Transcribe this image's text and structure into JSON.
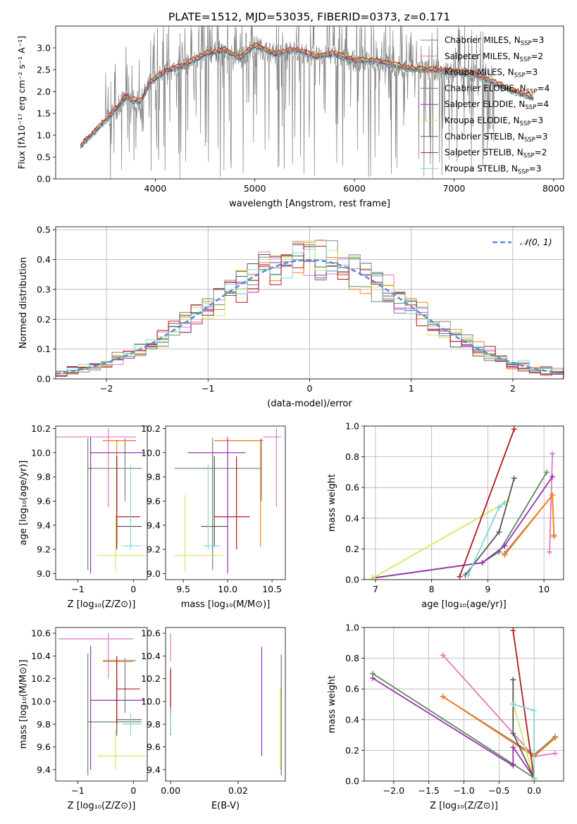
{
  "title": "PLATE=1512, MJD=53035, FIBERID=0373, z=0.171",
  "colors": [
    "#808080",
    "#e377c2",
    "#ff7f0e",
    "#5a8a5a",
    "#9b30b0",
    "#d4ea5a",
    "#555555",
    "#b01a1a",
    "#7fd8d8"
  ],
  "chart_data": [
    {
      "id": "spectrum",
      "type": "line",
      "xlabel": "wavelength [Angstrom, rest frame]",
      "ylabel": "Flux [fλ10⁻¹⁷ erg cm⁻² s⁻¹ A⁻¹]",
      "xlim": [
        3000,
        8100
      ],
      "ylim": [
        0,
        3.5
      ],
      "xticks": [
        4000,
        5000,
        6000,
        7000,
        8000
      ],
      "yticks": [
        0.0,
        0.5,
        1.0,
        1.5,
        2.0,
        2.5,
        3.0
      ],
      "legend_position": "upper-right",
      "continuum": {
        "x": [
          3250,
          3400,
          3550,
          3700,
          3850,
          3950,
          4100,
          4300,
          4500,
          4700,
          4850,
          5000,
          5200,
          5400,
          5600,
          5800,
          6000,
          6200,
          6400,
          6600,
          6800,
          7000,
          7200,
          7400,
          7600,
          7800
        ],
        "y": [
          0.75,
          1.1,
          1.45,
          1.85,
          1.75,
          2.2,
          2.45,
          2.6,
          2.85,
          2.95,
          2.75,
          3.05,
          2.85,
          2.95,
          2.8,
          2.85,
          2.7,
          2.7,
          2.6,
          2.5,
          2.5,
          2.45,
          2.4,
          2.2,
          2.0,
          1.85
        ]
      },
      "series": [
        {
          "name": "Chabrier MILES, N_SSP=3"
        },
        {
          "name": "Salpeter MILES, N_SSP=2"
        },
        {
          "name": "Kroupa MILES, N_SSP=3"
        },
        {
          "name": "Chabrier ELODIE, N_SSP=4"
        },
        {
          "name": "Salpeter ELODIE, N_SSP=4"
        },
        {
          "name": "Kroupa ELODIE, N_SSP=3"
        },
        {
          "name": "Chabrier STELIB, N_SSP=3"
        },
        {
          "name": "Salpeter STELIB, N_SSP=2"
        },
        {
          "name": "Kroupa STELIB, N_SSP=3"
        }
      ]
    },
    {
      "id": "residuals",
      "type": "histogram",
      "xlabel": "(data-model)/error",
      "ylabel": "Normed distribution",
      "xlim": [
        -2.5,
        2.5
      ],
      "ylim": [
        0,
        0.51
      ],
      "xticks": [
        -2,
        -1,
        0,
        1,
        2
      ],
      "yticks": [
        0.0,
        0.1,
        0.2,
        0.3,
        0.4,
        0.5
      ],
      "grid": true,
      "bin_width": 0.111,
      "reference": {
        "name": "𝒩(0, 1)",
        "mean": 0,
        "sigma": 1
      }
    },
    {
      "id": "age-vs-z",
      "type": "errorbar",
      "xlabel": "Z [log₁₀(Z/Z⊙)]",
      "ylabel": "age  [log₁₀(age/yr)]",
      "xlim": [
        -1.4,
        0.25
      ],
      "ylim": [
        8.95,
        10.22
      ],
      "xticks": [
        -1,
        0
      ],
      "yticks": [
        9.0,
        9.2,
        9.4,
        9.6,
        9.8,
        10.0,
        10.2
      ],
      "points": [
        {
          "c": 1,
          "x": -0.45,
          "xlo": -1.4,
          "xhi": 0.05,
          "y": 10.13,
          "ylo": 9.55,
          "yhi": 10.2
        },
        {
          "c": 0,
          "x": -0.15,
          "xlo": -0.55,
          "xhi": 0.05,
          "y": 10.1,
          "ylo": 9.6,
          "yhi": 10.12
        },
        {
          "c": 2,
          "x": -0.3,
          "xlo": -0.55,
          "xhi": 0.0,
          "y": 10.1,
          "ylo": 9.22,
          "yhi": 10.11
        },
        {
          "c": 3,
          "x": -0.82,
          "xlo": -0.82,
          "xhi": 0.15,
          "y": 9.87,
          "ylo": 9.03,
          "yhi": 10.12
        },
        {
          "c": 4,
          "x": -0.77,
          "xlo": -0.78,
          "xhi": 0.2,
          "y": 10.0,
          "ylo": 9.0,
          "yhi": 10.13
        },
        {
          "c": 5,
          "x": -0.32,
          "xlo": -0.65,
          "xhi": 0.25,
          "y": 9.15,
          "ylo": 9.02,
          "yhi": 9.48
        },
        {
          "c": 6,
          "x": -0.3,
          "xlo": -0.3,
          "xhi": 0.15,
          "y": 9.39,
          "ylo": 9.22,
          "yhi": 9.97
        },
        {
          "c": 7,
          "x": -0.3,
          "xlo": -0.3,
          "xhi": 0.12,
          "y": 9.47,
          "ylo": 9.2,
          "yhi": 9.97
        },
        {
          "c": 8,
          "x": -0.05,
          "xlo": -0.2,
          "xhi": 0.15,
          "y": 9.23,
          "ylo": 9.2,
          "yhi": 9.9
        }
      ]
    },
    {
      "id": "age-vs-mass",
      "type": "errorbar",
      "xlabel": "mass [log₁₀(M/M⊙)]",
      "ylabel": "",
      "xlim": [
        9.3,
        10.65
      ],
      "ylim": [
        8.95,
        10.22
      ],
      "xticks": [
        9.5,
        10.0,
        10.5
      ],
      "yticks": [
        9.0,
        9.2,
        9.4,
        9.6,
        9.8,
        10.0,
        10.2
      ],
      "points": [
        {
          "c": 1,
          "x": 10.55,
          "xlo": 10.4,
          "xhi": 10.6,
          "y": 10.13,
          "ylo": 9.55,
          "yhi": 10.2
        },
        {
          "c": 0,
          "x": 10.38,
          "xlo": 9.85,
          "xhi": 10.4,
          "y": 10.1,
          "ylo": 9.6,
          "yhi": 10.12
        },
        {
          "c": 2,
          "x": 10.37,
          "xlo": 9.85,
          "xhi": 10.37,
          "y": 10.1,
          "ylo": 9.22,
          "yhi": 10.11
        },
        {
          "c": 3,
          "x": 9.83,
          "xlo": 9.4,
          "xhi": 10.38,
          "y": 9.87,
          "ylo": 9.03,
          "yhi": 10.12
        },
        {
          "c": 4,
          "x": 10.0,
          "xlo": 9.55,
          "xhi": 10.2,
          "y": 10.0,
          "ylo": 9.0,
          "yhi": 10.13
        },
        {
          "c": 5,
          "x": 9.52,
          "xlo": 9.4,
          "xhi": 9.95,
          "y": 9.15,
          "ylo": 9.02,
          "yhi": 9.65
        },
        {
          "c": 6,
          "x": 9.85,
          "xlo": 9.7,
          "xhi": 10.0,
          "y": 9.39,
          "ylo": 9.22,
          "yhi": 9.97
        },
        {
          "c": 7,
          "x": 10.1,
          "xlo": 9.85,
          "xhi": 10.25,
          "y": 9.47,
          "ylo": 9.2,
          "yhi": 9.97
        },
        {
          "c": 8,
          "x": 9.78,
          "xlo": 9.72,
          "xhi": 9.92,
          "y": 9.23,
          "ylo": 9.2,
          "yhi": 9.9
        }
      ]
    },
    {
      "id": "weight-vs-age",
      "type": "line",
      "xlabel": "age  [log₁₀(age/yr)]",
      "ylabel": "mass weight",
      "xlim": [
        6.8,
        10.35
      ],
      "ylim": [
        0,
        1
      ],
      "xticks": [
        7,
        8,
        9,
        10
      ],
      "yticks": [
        0.0,
        0.2,
        0.4,
        0.6,
        0.8,
        1.0
      ],
      "grid": true,
      "series": [
        {
          "c": 1,
          "x": [
            10.1,
            10.15
          ],
          "y": [
            0.18,
            0.82
          ]
        },
        {
          "c": 0,
          "x": [
            9.3,
            10.15,
            10.18
          ],
          "y": [
            0.17,
            0.55,
            0.29
          ]
        },
        {
          "c": 2,
          "x": [
            9.3,
            10.15,
            10.18
          ],
          "y": [
            0.16,
            0.55,
            0.28
          ]
        },
        {
          "c": 3,
          "x": [
            6.95,
            8.9,
            9.2,
            10.05
          ],
          "y": [
            0.01,
            0.11,
            0.18,
            0.7
          ]
        },
        {
          "c": 4,
          "x": [
            6.95,
            8.9,
            9.3,
            10.15
          ],
          "y": [
            0.01,
            0.11,
            0.22,
            0.67
          ]
        },
        {
          "c": 5,
          "x": [
            6.95,
            9.35
          ],
          "y": [
            0.01,
            0.51
          ]
        },
        {
          "c": 6,
          "x": [
            8.6,
            9.2,
            9.47
          ],
          "y": [
            0.03,
            0.31,
            0.66
          ]
        },
        {
          "c": 7,
          "x": [
            8.5,
            9.47
          ],
          "y": [
            0.02,
            0.98
          ]
        },
        {
          "c": 8,
          "x": [
            8.65,
            9.2,
            9.3
          ],
          "y": [
            0.03,
            0.47,
            0.5
          ]
        }
      ]
    },
    {
      "id": "mass-vs-z",
      "type": "errorbar",
      "xlabel": "Z [log₁₀(Z/Z⊙)]",
      "ylabel": "mass [log₁₀(M/M⊙)]",
      "xlim": [
        -1.4,
        0.25
      ],
      "ylim": [
        9.3,
        10.65
      ],
      "xticks": [
        -1,
        0
      ],
      "yticks": [
        9.4,
        9.6,
        9.8,
        10.0,
        10.2,
        10.4,
        10.6
      ],
      "points": [
        {
          "c": 1,
          "x": -0.45,
          "xlo": -1.35,
          "xhi": 0.0,
          "y": 10.55,
          "ylo": 10.2,
          "yhi": 10.6
        },
        {
          "c": 0,
          "x": -0.15,
          "xlo": -0.55,
          "xhi": 0.05,
          "y": 10.36,
          "ylo": 9.9,
          "yhi": 10.38
        },
        {
          "c": 2,
          "x": -0.3,
          "xlo": -0.55,
          "xhi": 0.0,
          "y": 10.35,
          "ylo": 10.1,
          "yhi": 10.36
        },
        {
          "c": 3,
          "x": -0.82,
          "xlo": -0.82,
          "xhi": 0.15,
          "y": 9.82,
          "ylo": 9.35,
          "yhi": 10.42
        },
        {
          "c": 4,
          "x": -0.77,
          "xlo": -0.78,
          "xhi": 0.2,
          "y": 10.01,
          "ylo": 9.4,
          "yhi": 10.49
        },
        {
          "c": 5,
          "x": -0.32,
          "xlo": -0.65,
          "xhi": 0.25,
          "y": 9.52,
          "ylo": 9.4,
          "yhi": 9.75
        },
        {
          "c": 6,
          "x": -0.3,
          "xlo": -0.3,
          "xhi": 0.15,
          "y": 9.84,
          "ylo": 9.7,
          "yhi": 10.2
        },
        {
          "c": 7,
          "x": -0.3,
          "xlo": -0.3,
          "xhi": 0.12,
          "y": 10.11,
          "ylo": 9.8,
          "yhi": 10.4
        },
        {
          "c": 8,
          "x": -0.05,
          "xlo": -0.2,
          "xhi": 0.15,
          "y": 9.8,
          "ylo": 9.7,
          "yhi": 9.9
        }
      ]
    },
    {
      "id": "mass-vs-ebv",
      "type": "errorbar",
      "xlabel": "E(B-V)",
      "ylabel": "",
      "xlim": [
        -0.0015,
        0.034
      ],
      "ylim": [
        9.3,
        10.65
      ],
      "xticks": [
        0.0,
        0.02
      ],
      "yticks": [
        9.4,
        9.6,
        9.8,
        10.0,
        10.2,
        10.4,
        10.6
      ],
      "points": [
        {
          "c": 1,
          "x": 0.0,
          "y": 10.55,
          "ylo": 10.35,
          "yhi": 10.6
        },
        {
          "c": 0,
          "x": 0.0,
          "y": 10.2,
          "ylo": 9.7,
          "yhi": 10.3
        },
        {
          "c": 7,
          "x": 0.0,
          "y": 10.2,
          "ylo": 9.95,
          "yhi": 10.28
        },
        {
          "c": 8,
          "x": 0.0,
          "y": 9.8,
          "ylo": 9.72,
          "yhi": 9.9
        },
        {
          "c": 4,
          "x": 0.027,
          "y": 10.0,
          "ylo": 9.52,
          "yhi": 10.48
        },
        {
          "c": 3,
          "x": 0.0328,
          "y": 9.9,
          "ylo": 9.35,
          "yhi": 10.41
        },
        {
          "c": 5,
          "x": 0.0325,
          "y": 9.6,
          "ylo": 9.4,
          "yhi": 10.12
        }
      ]
    },
    {
      "id": "weight-vs-z",
      "type": "line",
      "xlabel": "Z [log₁₀(Z/Z⊙)]",
      "ylabel": "mass weight",
      "xlim": [
        -2.42,
        0.42
      ],
      "ylim": [
        0,
        1
      ],
      "xticks": [
        -2.0,
        -1.5,
        -1.0,
        -0.5,
        0.0
      ],
      "yticks": [
        0.0,
        0.2,
        0.4,
        0.6,
        0.8,
        1.0
      ],
      "grid": true,
      "series": [
        {
          "c": 1,
          "x": [
            -1.3,
            0.0,
            0.3
          ],
          "y": [
            0.82,
            0.16,
            0.18
          ]
        },
        {
          "c": 0,
          "x": [
            -1.3,
            0.0,
            0.3
          ],
          "y": [
            0.55,
            0.17,
            0.29
          ]
        },
        {
          "c": 2,
          "x": [
            -1.3,
            0.0,
            0.3
          ],
          "y": [
            0.55,
            0.16,
            0.28
          ]
        },
        {
          "c": 3,
          "x": [
            -2.3,
            -0.3,
            0.0
          ],
          "y": [
            0.7,
            0.11,
            0.02
          ]
        },
        {
          "c": 4,
          "x": [
            -2.3,
            -0.3,
            -0.3,
            0.0
          ],
          "y": [
            0.67,
            0.1,
            0.22,
            0.02
          ]
        },
        {
          "c": 5,
          "x": [
            -0.3,
            0.0
          ],
          "y": [
            0.51,
            0.01
          ]
        },
        {
          "c": 6,
          "x": [
            -0.3,
            -0.3,
            0.0
          ],
          "y": [
            0.66,
            0.31,
            0.02
          ]
        },
        {
          "c": 7,
          "x": [
            -0.3,
            0.0
          ],
          "y": [
            0.98,
            0.02
          ]
        },
        {
          "c": 8,
          "x": [
            -0.3,
            0.0,
            0.0
          ],
          "y": [
            0.5,
            0.46,
            0.02
          ]
        }
      ]
    }
  ]
}
